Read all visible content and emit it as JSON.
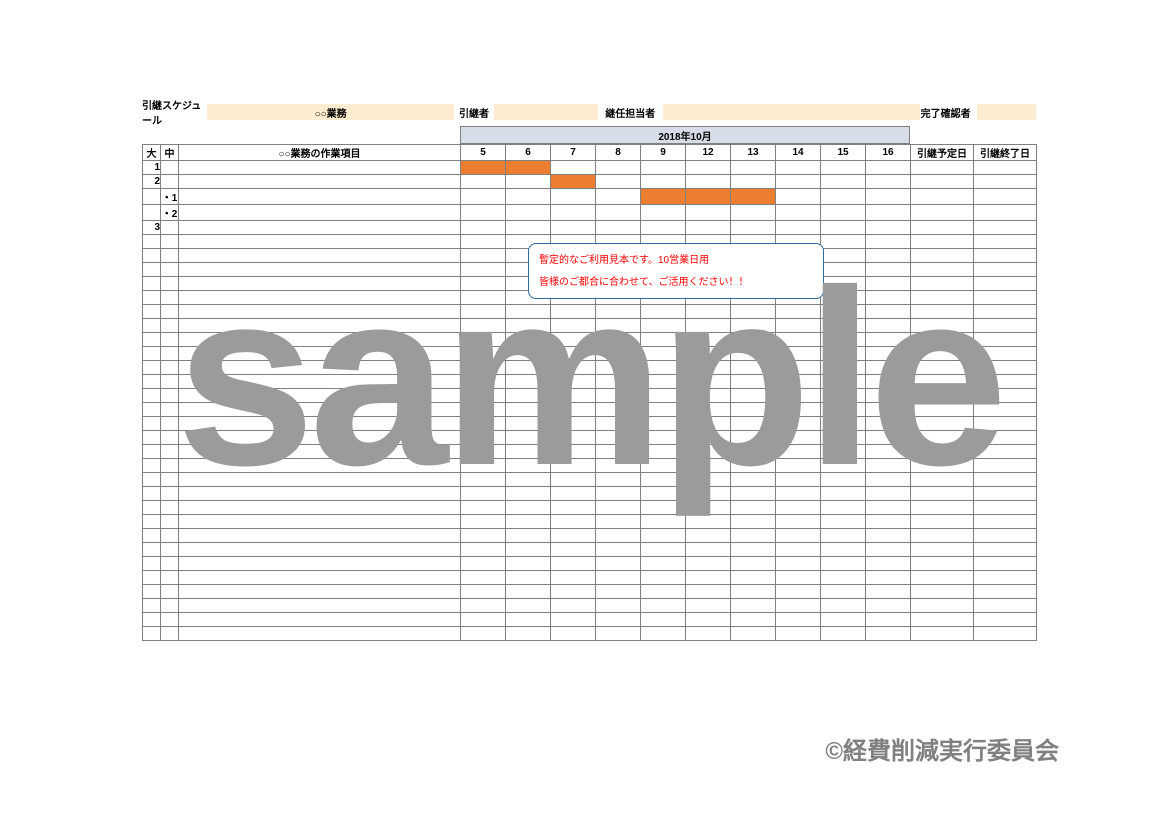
{
  "header": {
    "schedule_label": "引継スケジュール",
    "schedule_value": "○○業務",
    "handover_label": "引継者",
    "handover_value": "",
    "successor_label": "継任担当者",
    "successor_value": "",
    "confirmer_label": "完了確認者",
    "confirmer_value": ""
  },
  "month_title": "2018年10月",
  "columns": {
    "major": "大",
    "minor": "中",
    "task_header": "○○業務の作業項目",
    "days": [
      "5",
      "6",
      "7",
      "8",
      "9",
      "12",
      "13",
      "14",
      "15",
      "16"
    ],
    "plan_date": "引継予定日",
    "done_date": "引継終了日"
  },
  "layout": {
    "col_major_w": 18,
    "col_minor_w": 18,
    "col_task_w": 282,
    "col_day_w": 45,
    "col_plan_w": 63,
    "col_done_w": 63,
    "body_rows": 34
  },
  "rows": [
    {
      "major": "1",
      "minor": "",
      "bars": [
        0,
        1
      ]
    },
    {
      "major": "2",
      "minor": "",
      "bars": [
        2
      ]
    },
    {
      "major": "",
      "minor": "・1",
      "bars": [
        4,
        5,
        6
      ]
    },
    {
      "major": "",
      "minor": "・2",
      "bars": []
    },
    {
      "major": "3",
      "minor": "",
      "bars": []
    }
  ],
  "balloon": {
    "line1": "暫定的なご利用見本です。10営業日用",
    "line2": "皆様のご都合に合わせて、ご活用ください！！"
  },
  "watermark_text": "sample",
  "copyright_text": "©経費削減実行委員会",
  "colors": {
    "value_bg": "#fdeccf",
    "month_bg": "#d7dce9",
    "task_hdr_bg": "#d7e8d5",
    "bar_fill": "#ed7d31",
    "border": "#7f7f7f",
    "balloon_border": "#2e6ca4",
    "balloon_text": "#ff0000",
    "watermark": "#9b9b9b",
    "copyright": "#808080"
  }
}
